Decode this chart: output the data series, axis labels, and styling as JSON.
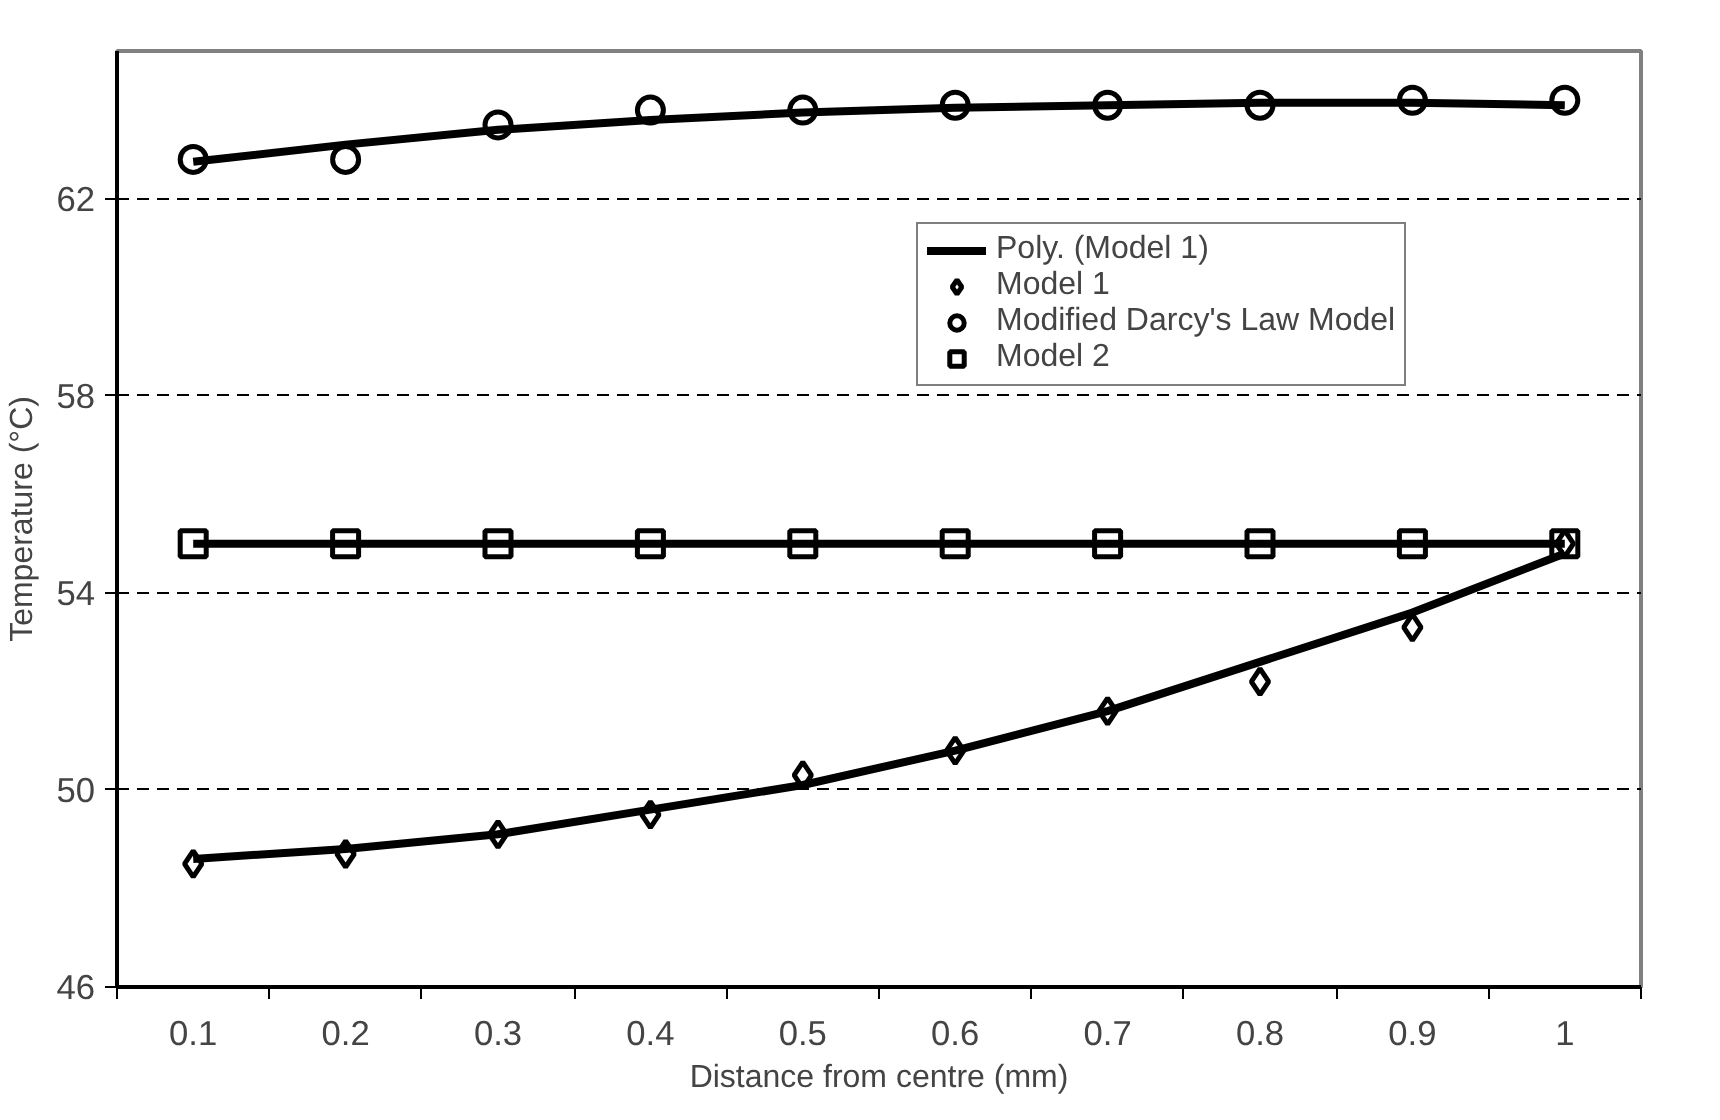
{
  "chart_data": {
    "type": "scatter",
    "xlabel": "Distance from centre (mm)",
    "ylabel": "Temperature (°C)",
    "categories": [
      "0.1",
      "0.2",
      "0.3",
      "0.4",
      "0.5",
      "0.6",
      "0.7",
      "0.8",
      "0.9",
      "1"
    ],
    "ylim": [
      46,
      65
    ],
    "yticks": [
      46,
      50,
      54,
      58,
      62
    ],
    "grid": "y",
    "legend": "right",
    "series": [
      {
        "name": "Model 1",
        "marker": "diamond",
        "color": "#000000",
        "values": [
          48.5,
          48.7,
          49.1,
          49.5,
          50.3,
          50.8,
          51.6,
          52.2,
          53.3,
          55.0
        ]
      },
      {
        "name": "Modified Darcy's Law Model",
        "marker": "circle",
        "color": "#000000",
        "values": [
          62.8,
          62.8,
          63.5,
          63.8,
          63.8,
          63.9,
          63.9,
          63.9,
          64.0,
          64.0
        ]
      },
      {
        "name": "Model 2",
        "marker": "square",
        "color": "#000000",
        "values": [
          55,
          55,
          55,
          55,
          55,
          55,
          55,
          55,
          55,
          55
        ]
      },
      {
        "name": "Poly. (Model 1)",
        "type": "line",
        "marker": "none",
        "color": "#000000",
        "values": [
          48.6,
          48.8,
          49.1,
          49.6,
          50.1,
          50.8,
          51.6,
          52.6,
          53.6,
          54.8
        ]
      },
      {
        "type": "line",
        "marker": "none",
        "color": "#000000",
        "values": [
          62.75,
          63.1,
          63.4,
          63.6,
          63.75,
          63.85,
          63.9,
          63.95,
          63.95,
          63.9
        ]
      },
      {
        "type": "line",
        "marker": "none",
        "color": "#000000",
        "values": [
          55,
          55,
          55,
          55,
          55,
          55,
          55,
          55,
          55,
          55
        ]
      }
    ]
  }
}
